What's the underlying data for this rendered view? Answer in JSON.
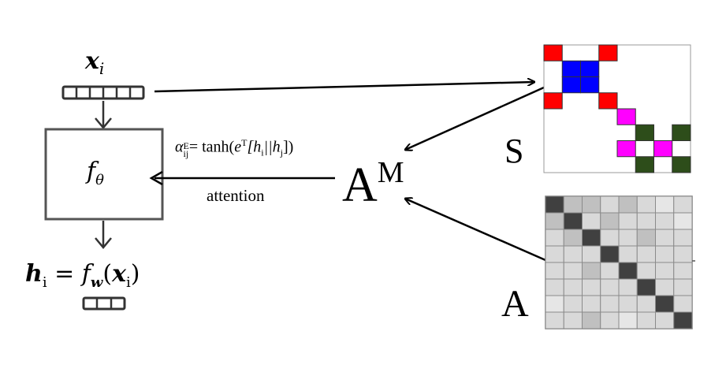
{
  "labels": {
    "input_symbol": "x",
    "input_sub": "i",
    "model_symbol": "f",
    "model_sub": "θ",
    "formula_alpha": "α",
    "formula_alpha_sup": "E",
    "formula_alpha_sub": "ij",
    "formula_rest": "= tanh(",
    "formula_e": "e",
    "formula_e_sup": "T",
    "formula_bracket": "[h",
    "formula_hi_sub": "i",
    "formula_concat": "||h",
    "formula_hj_sub": "j",
    "formula_close": "])",
    "attention_label": "attention",
    "output_h": "h",
    "output_h_sub": "i",
    "output_eq": " = f",
    "output_w_sub": "w",
    "output_arg_open": "(",
    "output_x": "x",
    "output_x_sub": "i",
    "output_arg_close": ")",
    "A_M_base": "A",
    "A_M_sup": "M",
    "S_label": "S",
    "A_label": "A"
  },
  "colors": {
    "red": "#ff0000",
    "blue": "#0000ff",
    "magenta": "#ff00ff",
    "dark_green": "#2d4d1a",
    "heat_diag": "#404040",
    "heat_light": "#d9d9d9",
    "heat_mid": "#c0c0c0",
    "heat_pale": "#e6e6e6",
    "box_stroke": "#555555"
  },
  "matrix_S": {
    "rows": 8,
    "cols": 8,
    "cells": [
      [
        "red",
        "",
        "",
        "red",
        "",
        "",
        "",
        ""
      ],
      [
        "",
        "blue",
        "blue",
        "",
        "",
        "",
        "",
        ""
      ],
      [
        "",
        "blue",
        "blue",
        "",
        "",
        "",
        "",
        ""
      ],
      [
        "red",
        "",
        "",
        "red",
        "",
        "",
        "",
        ""
      ],
      [
        "",
        "",
        "",
        "",
        "magenta",
        "",
        "",
        ""
      ],
      [
        "",
        "",
        "",
        "",
        "",
        "dark_green",
        "",
        "dark_green"
      ],
      [
        "",
        "",
        "",
        "",
        "magenta",
        "",
        "magenta",
        ""
      ],
      [
        "",
        "",
        "",
        "",
        "",
        "dark_green",
        "",
        "dark_green"
      ]
    ]
  },
  "matrix_A": {
    "rows": 8,
    "cols": 8,
    "cells": [
      [
        "diag",
        "mid",
        "mid",
        "light",
        "mid",
        "light",
        "pale",
        "light"
      ],
      [
        "mid",
        "diag",
        "light",
        "mid",
        "light",
        "light",
        "light",
        "pale"
      ],
      [
        "light",
        "mid",
        "diag",
        "light",
        "light",
        "mid",
        "light",
        "light"
      ],
      [
        "light",
        "light",
        "light",
        "diag",
        "light",
        "light",
        "light",
        "light"
      ],
      [
        "light",
        "light",
        "mid",
        "light",
        "diag",
        "light",
        "light",
        "light"
      ],
      [
        "light",
        "light",
        "light",
        "light",
        "light",
        "diag",
        "light",
        "light"
      ],
      [
        "pale",
        "light",
        "light",
        "light",
        "light",
        "light",
        "diag",
        "light"
      ],
      [
        "light",
        "light",
        "mid",
        "light",
        "pale",
        "light",
        "light",
        "diag"
      ]
    ]
  }
}
